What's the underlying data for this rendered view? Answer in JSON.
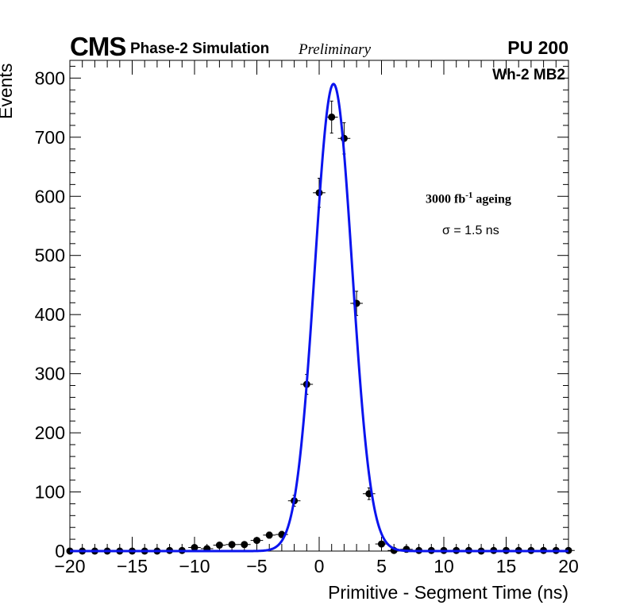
{
  "header": {
    "experiment": "CMS",
    "simulation": "Phase-2 Simulation",
    "status": "Preliminary",
    "pileup": "PU 200"
  },
  "annotations": {
    "chamber": "Wh-2 MB2",
    "ageing_prefix": "3000 fb",
    "ageing_sup": "-1",
    "ageing_suffix": " ageing",
    "sigma": "σ = 1.5 ns"
  },
  "chart_data": {
    "type": "scatter",
    "title": "",
    "xlabel": "Primitive - Segment Time (ns)",
    "ylabel": "Events",
    "xlim": [
      -20,
      20
    ],
    "ylim": [
      0,
      830
    ],
    "x_ticks": [
      -20,
      -15,
      -10,
      -5,
      0,
      5,
      10,
      15,
      20
    ],
    "x_tick_labels": [
      "−20",
      "−15",
      "−10",
      "−5",
      "0",
      "5",
      "10",
      "15",
      "20"
    ],
    "y_ticks": [
      0,
      100,
      200,
      300,
      400,
      500,
      600,
      700,
      800
    ],
    "grid": false,
    "series": [
      {
        "style": "points-with-errorbars",
        "color": "#000000",
        "x": [
          -20,
          -19,
          -18,
          -17,
          -16,
          -15,
          -14,
          -13,
          -12,
          -11,
          -10,
          -9,
          -8,
          -7,
          -6,
          -5,
          -4,
          -3,
          -2,
          -1,
          0,
          1,
          2,
          3,
          4,
          5,
          6,
          7,
          8,
          9,
          10,
          11,
          12,
          13,
          14,
          15,
          16,
          17,
          18,
          19,
          20
        ],
        "y": [
          0,
          0,
          0,
          0,
          0,
          0,
          0,
          0,
          1,
          1,
          6,
          4,
          10,
          11,
          11,
          18,
          27,
          28,
          85,
          282,
          606,
          734,
          698,
          419,
          97,
          12,
          1,
          3,
          1,
          1,
          1,
          1,
          1,
          0,
          1,
          1,
          1,
          1,
          1,
          1,
          1
        ]
      },
      {
        "style": "line",
        "color": "#0a14ee",
        "fit": "gaussian",
        "amplitude": 790,
        "mean": 1.15,
        "sigma": 1.5
      }
    ]
  }
}
